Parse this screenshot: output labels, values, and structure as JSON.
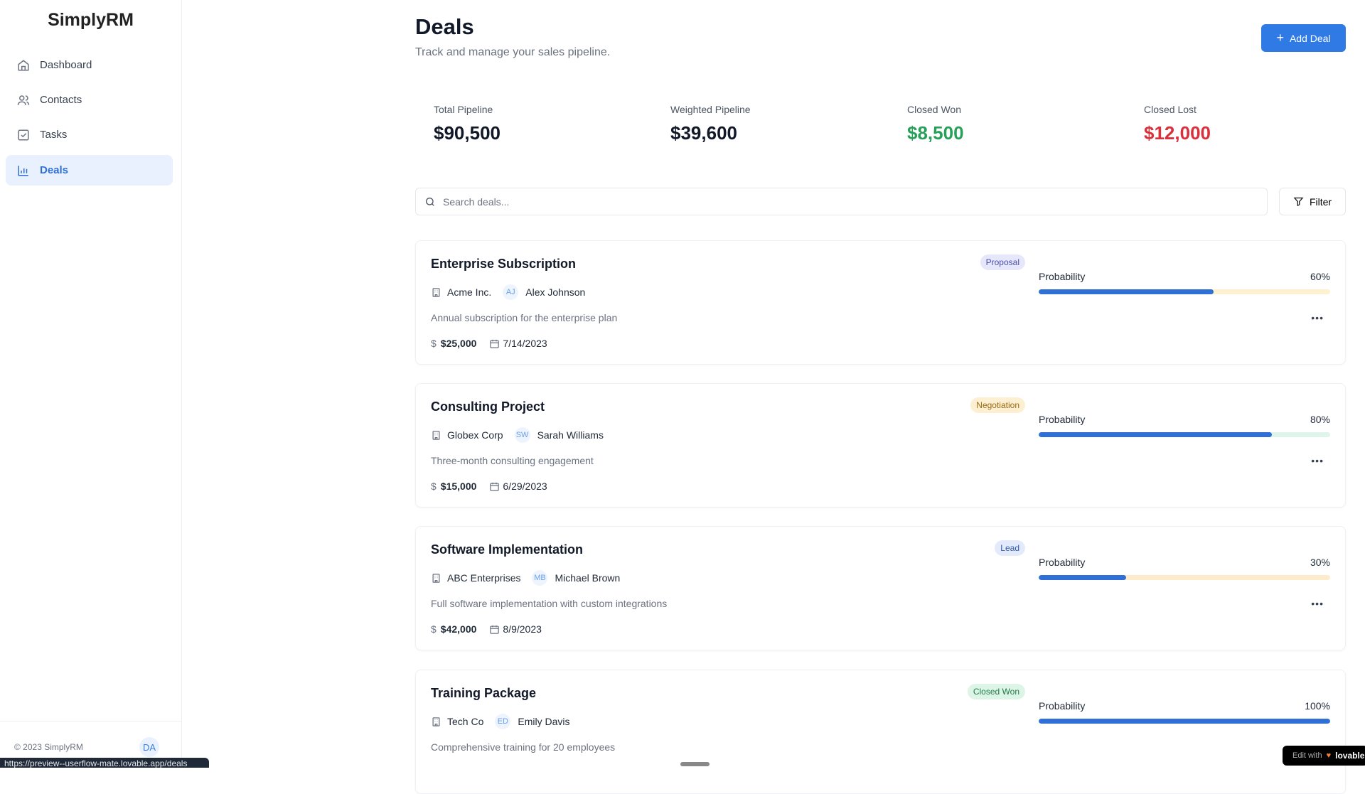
{
  "app": {
    "name": "SimplyRM",
    "footer": "© 2023 SimplyRM",
    "user_initials": "DA",
    "status_url": "https://preview--userflow-mate.lovable.app/deals",
    "badge_text": "Edit with",
    "badge_brand": "lovable"
  },
  "sidebar": {
    "items": [
      {
        "label": "Dashboard",
        "icon": "home-icon"
      },
      {
        "label": "Contacts",
        "icon": "users-icon"
      },
      {
        "label": "Tasks",
        "icon": "check-square-icon"
      },
      {
        "label": "Deals",
        "icon": "bar-chart-icon",
        "active": true
      }
    ]
  },
  "header": {
    "title": "Deals",
    "subtitle": "Track and manage your sales pipeline.",
    "add_label": "Add Deal"
  },
  "stats": [
    {
      "label": "Total Pipeline",
      "value": "$90,500",
      "color": "#111827"
    },
    {
      "label": "Weighted Pipeline",
      "value": "$39,600",
      "color": "#111827"
    },
    {
      "label": "Closed Won",
      "value": "$8,500",
      "color": "#27a05a"
    },
    {
      "label": "Closed Lost",
      "value": "$12,000",
      "color": "#dc2f3c"
    }
  ],
  "search": {
    "placeholder": "Search deals...",
    "value": ""
  },
  "filter_label": "Filter",
  "probability_label": "Probability",
  "deals": [
    {
      "title": "Enterprise Subscription",
      "stage": "Proposal",
      "stage_bg": "#e7e7fb",
      "stage_fg": "#4b4fa8",
      "company": "Acme Inc.",
      "contact_initials": "AJ",
      "contact": "Alex Johnson",
      "description": "Annual subscription for the enterprise plan",
      "amount": "$25,000",
      "date": "7/14/2023",
      "probability": 60,
      "probability_text": "60%",
      "track": "#fdf1d0"
    },
    {
      "title": "Consulting Project",
      "stage": "Negotiation",
      "stage_bg": "#fdf0d2",
      "stage_fg": "#9a6a12",
      "company": "Globex Corp",
      "contact_initials": "SW",
      "contact": "Sarah Williams",
      "description": "Three-month consulting engagement",
      "amount": "$15,000",
      "date": "6/29/2023",
      "probability": 80,
      "probability_text": "80%",
      "track": "#e0f5ea"
    },
    {
      "title": "Software Implementation",
      "stage": "Lead",
      "stage_bg": "#e3ebfb",
      "stage_fg": "#2f5aa8",
      "company": "ABC Enterprises",
      "contact_initials": "MB",
      "contact": "Michael Brown",
      "description": "Full software implementation with custom integrations",
      "amount": "$42,000",
      "date": "8/9/2023",
      "probability": 30,
      "probability_text": "30%",
      "track": "#fdeccc"
    },
    {
      "title": "Training Package",
      "stage": "Closed Won",
      "stage_bg": "#dcf5e6",
      "stage_fg": "#227a48",
      "company": "Tech Co",
      "contact_initials": "ED",
      "contact": "Emily Davis",
      "description": "Comprehensive training for 20 employees",
      "amount": "",
      "date": "",
      "probability": 100,
      "probability_text": "100%",
      "track": "#e0f5ea"
    }
  ]
}
